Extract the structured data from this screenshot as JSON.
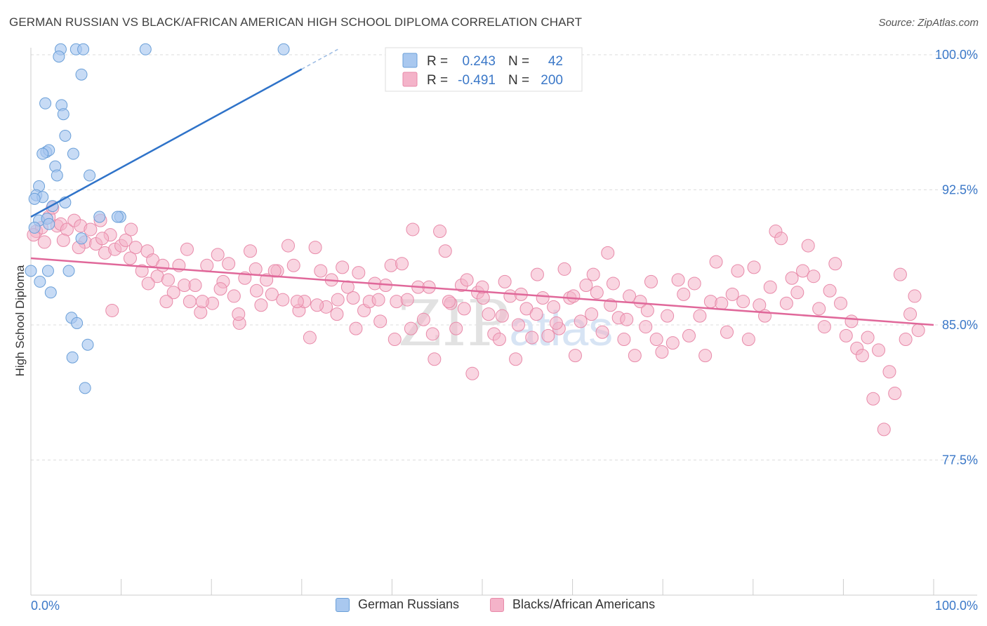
{
  "header": {
    "title": "GERMAN RUSSIAN VS BLACK/AFRICAN AMERICAN HIGH SCHOOL DIPLOMA CORRELATION CHART",
    "source": "Source: ZipAtlas.com"
  },
  "watermark": "ZIPatlas",
  "colors": {
    "blue_fill": "#a9c8ef",
    "blue_stroke": "#6a9fd8",
    "blue_line": "#2f73c9",
    "pink_fill": "#f4b3c9",
    "pink_stroke": "#e88aa9",
    "pink_line": "#e0689a",
    "axis_value": "#3b78c8",
    "grid": "#dddddd"
  },
  "legend_box": {
    "rows": [
      {
        "r_label": "R =",
        "r_value": "0.243",
        "n_label": "N =",
        "n_value": "42"
      },
      {
        "r_label": "R =",
        "r_value": "-0.491",
        "n_label": "N =",
        "n_value": "200"
      }
    ]
  },
  "chart_data": {
    "type": "scatter",
    "title": "GERMAN RUSSIAN VS BLACK/AFRICAN AMERICAN HIGH SCHOOL DIPLOMA CORRELATION CHART",
    "xlabel": "",
    "ylabel": "High School Diploma",
    "xlim": [
      0,
      100
    ],
    "ylim": [
      70,
      100
    ],
    "x_tick_labels": [
      "0.0%",
      "100.0%"
    ],
    "y_tick_labels": [
      "100.0%",
      "92.5%",
      "85.0%",
      "77.5%"
    ],
    "y_ticks": [
      100.0,
      92.5,
      85.0,
      77.5
    ],
    "grid": true,
    "legend": "bottom-center",
    "series": [
      {
        "name": "German Russians",
        "color": "#a9c8ef",
        "r": 0.243,
        "n": 42,
        "trend": {
          "x0": 0.0,
          "y0": 91.0,
          "x1": 30.0,
          "y1": 99.2,
          "dashed_to_x": 34.0,
          "dashed_to_y": 100.3
        },
        "points": [
          [
            3.3,
            100.3
          ],
          [
            5.0,
            100.3
          ],
          [
            5.8,
            100.3
          ],
          [
            12.7,
            100.3
          ],
          [
            28.0,
            100.3
          ],
          [
            3.1,
            99.9
          ],
          [
            5.6,
            98.9
          ],
          [
            1.6,
            97.3
          ],
          [
            3.4,
            97.2
          ],
          [
            3.6,
            96.7
          ],
          [
            3.8,
            95.5
          ],
          [
            1.7,
            94.6
          ],
          [
            2.0,
            94.7
          ],
          [
            1.3,
            94.5
          ],
          [
            4.7,
            94.5
          ],
          [
            2.7,
            93.8
          ],
          [
            2.9,
            93.3
          ],
          [
            6.5,
            93.3
          ],
          [
            0.9,
            92.7
          ],
          [
            0.6,
            92.2
          ],
          [
            1.3,
            92.1
          ],
          [
            0.4,
            92.0
          ],
          [
            3.8,
            91.8
          ],
          [
            2.4,
            91.6
          ],
          [
            7.6,
            91.0
          ],
          [
            9.9,
            91.0
          ],
          [
            0.9,
            90.8
          ],
          [
            1.8,
            90.9
          ],
          [
            9.6,
            91.0
          ],
          [
            5.6,
            89.8
          ],
          [
            0.0,
            88.0
          ],
          [
            4.2,
            88.0
          ],
          [
            1.9,
            88.0
          ],
          [
            1.0,
            87.4
          ],
          [
            2.2,
            86.8
          ],
          [
            4.5,
            85.4
          ],
          [
            5.1,
            85.1
          ],
          [
            6.3,
            83.9
          ],
          [
            4.6,
            83.2
          ],
          [
            6.0,
            81.5
          ],
          [
            0.4,
            90.4
          ],
          [
            2.0,
            90.6
          ]
        ]
      },
      {
        "name": "Blacks/African Americans",
        "color": "#f4b3c9",
        "r": -0.491,
        "n": 200,
        "trend": {
          "x0": 0.0,
          "y0": 88.7,
          "x1": 100.0,
          "y1": 85.0
        },
        "points": [
          [
            0.6,
            90.2
          ],
          [
            1.2,
            90.4
          ],
          [
            2.0,
            91.0
          ],
          [
            2.4,
            91.5
          ],
          [
            2.9,
            90.5
          ],
          [
            3.3,
            90.6
          ],
          [
            4.0,
            90.3
          ],
          [
            4.8,
            90.8
          ],
          [
            5.5,
            90.5
          ],
          [
            6.0,
            89.6
          ],
          [
            6.6,
            90.3
          ],
          [
            7.2,
            89.5
          ],
          [
            7.7,
            90.8
          ],
          [
            8.2,
            89.0
          ],
          [
            8.8,
            90.0
          ],
          [
            9.3,
            89.2
          ],
          [
            10.0,
            89.4
          ],
          [
            10.5,
            89.7
          ],
          [
            11.1,
            90.3
          ],
          [
            11.6,
            89.3
          ],
          [
            12.3,
            88.0
          ],
          [
            12.9,
            89.1
          ],
          [
            13.5,
            88.6
          ],
          [
            14.0,
            87.7
          ],
          [
            14.6,
            88.3
          ],
          [
            15.2,
            87.5
          ],
          [
            15.8,
            86.8
          ],
          [
            16.4,
            88.3
          ],
          [
            17.0,
            87.2
          ],
          [
            17.6,
            86.3
          ],
          [
            18.2,
            87.2
          ],
          [
            18.8,
            85.7
          ],
          [
            19.5,
            88.3
          ],
          [
            20.1,
            86.2
          ],
          [
            20.7,
            88.9
          ],
          [
            21.3,
            87.4
          ],
          [
            21.9,
            88.4
          ],
          [
            22.5,
            86.6
          ],
          [
            23.1,
            85.1
          ],
          [
            23.7,
            87.6
          ],
          [
            24.3,
            89.1
          ],
          [
            24.9,
            88.1
          ],
          [
            25.5,
            86.1
          ],
          [
            26.1,
            87.5
          ],
          [
            26.7,
            86.7
          ],
          [
            27.3,
            88.0
          ],
          [
            27.9,
            86.4
          ],
          [
            28.5,
            89.4
          ],
          [
            29.1,
            88.3
          ],
          [
            29.7,
            85.8
          ],
          [
            30.3,
            86.3
          ],
          [
            30.9,
            84.3
          ],
          [
            31.5,
            89.3
          ],
          [
            32.1,
            88.0
          ],
          [
            32.7,
            86.0
          ],
          [
            33.3,
            87.5
          ],
          [
            33.9,
            85.6
          ],
          [
            34.5,
            88.2
          ],
          [
            35.1,
            87.1
          ],
          [
            35.7,
            86.5
          ],
          [
            36.3,
            87.9
          ],
          [
            36.9,
            85.8
          ],
          [
            37.5,
            86.3
          ],
          [
            38.1,
            87.3
          ],
          [
            38.7,
            85.2
          ],
          [
            39.3,
            87.2
          ],
          [
            39.9,
            88.3
          ],
          [
            40.5,
            86.3
          ],
          [
            41.1,
            88.4
          ],
          [
            41.7,
            86.4
          ],
          [
            42.3,
            90.3
          ],
          [
            42.9,
            87.1
          ],
          [
            43.5,
            85.3
          ],
          [
            44.1,
            87.1
          ],
          [
            44.7,
            83.1
          ],
          [
            45.3,
            90.2
          ],
          [
            45.9,
            89.1
          ],
          [
            46.5,
            86.2
          ],
          [
            47.1,
            84.8
          ],
          [
            47.7,
            87.2
          ],
          [
            48.3,
            87.5
          ],
          [
            48.9,
            82.3
          ],
          [
            49.5,
            86.8
          ],
          [
            50.1,
            86.5
          ],
          [
            50.7,
            85.6
          ],
          [
            51.3,
            84.5
          ],
          [
            51.9,
            84.2
          ],
          [
            52.5,
            87.4
          ],
          [
            53.1,
            86.6
          ],
          [
            53.7,
            83.1
          ],
          [
            54.3,
            86.7
          ],
          [
            54.9,
            85.9
          ],
          [
            55.5,
            84.3
          ],
          [
            56.1,
            87.8
          ],
          [
            56.7,
            86.5
          ],
          [
            57.3,
            84.4
          ],
          [
            57.9,
            86.0
          ],
          [
            58.5,
            84.8
          ],
          [
            59.1,
            88.1
          ],
          [
            59.7,
            86.5
          ],
          [
            60.3,
            83.3
          ],
          [
            60.9,
            85.2
          ],
          [
            61.5,
            87.2
          ],
          [
            62.1,
            85.6
          ],
          [
            62.7,
            86.8
          ],
          [
            63.3,
            84.6
          ],
          [
            63.9,
            89.0
          ],
          [
            64.5,
            87.3
          ],
          [
            65.1,
            85.4
          ],
          [
            65.7,
            84.2
          ],
          [
            66.3,
            86.6
          ],
          [
            66.9,
            83.3
          ],
          [
            67.5,
            86.3
          ],
          [
            68.1,
            84.9
          ],
          [
            68.7,
            87.4
          ],
          [
            69.3,
            84.2
          ],
          [
            69.9,
            83.5
          ],
          [
            70.5,
            85.5
          ],
          [
            71.1,
            84.0
          ],
          [
            71.7,
            87.5
          ],
          [
            72.3,
            86.7
          ],
          [
            72.9,
            84.4
          ],
          [
            73.5,
            87.3
          ],
          [
            74.1,
            85.5
          ],
          [
            74.7,
            83.3
          ],
          [
            75.3,
            86.3
          ],
          [
            75.9,
            88.5
          ],
          [
            76.5,
            86.2
          ],
          [
            77.1,
            84.6
          ],
          [
            77.7,
            86.7
          ],
          [
            78.3,
            88.0
          ],
          [
            78.9,
            86.3
          ],
          [
            79.5,
            84.2
          ],
          [
            80.1,
            88.2
          ],
          [
            80.7,
            86.1
          ],
          [
            81.3,
            85.5
          ],
          [
            81.9,
            87.1
          ],
          [
            82.5,
            90.2
          ],
          [
            83.1,
            89.8
          ],
          [
            83.7,
            86.2
          ],
          [
            84.3,
            87.6
          ],
          [
            84.9,
            86.8
          ],
          [
            85.5,
            88.0
          ],
          [
            86.1,
            89.4
          ],
          [
            86.7,
            87.7
          ],
          [
            87.3,
            85.9
          ],
          [
            87.9,
            84.9
          ],
          [
            88.5,
            86.9
          ],
          [
            89.1,
            88.4
          ],
          [
            89.7,
            86.2
          ],
          [
            90.3,
            84.4
          ],
          [
            90.9,
            85.2
          ],
          [
            91.5,
            83.7
          ],
          [
            92.1,
            83.3
          ],
          [
            92.7,
            84.3
          ],
          [
            93.3,
            80.9
          ],
          [
            93.9,
            83.6
          ],
          [
            94.5,
            79.2
          ],
          [
            95.1,
            82.4
          ],
          [
            95.7,
            81.2
          ],
          [
            96.3,
            87.8
          ],
          [
            96.9,
            84.2
          ],
          [
            97.4,
            85.6
          ],
          [
            97.9,
            86.6
          ],
          [
            98.3,
            84.7
          ],
          [
            0.3,
            90.0
          ],
          [
            1.5,
            89.6
          ],
          [
            3.6,
            89.7
          ],
          [
            5.3,
            89.3
          ],
          [
            7.9,
            89.8
          ],
          [
            9.0,
            85.8
          ],
          [
            11.0,
            88.7
          ],
          [
            13.0,
            87.3
          ],
          [
            15.0,
            86.3
          ],
          [
            17.3,
            89.2
          ],
          [
            19.0,
            86.3
          ],
          [
            21.0,
            87.0
          ],
          [
            23.0,
            85.6
          ],
          [
            25.0,
            86.9
          ],
          [
            27.0,
            88.0
          ],
          [
            29.5,
            86.3
          ],
          [
            31.7,
            86.1
          ],
          [
            34.0,
            86.4
          ],
          [
            36.0,
            84.8
          ],
          [
            38.5,
            86.4
          ],
          [
            40.3,
            84.2
          ],
          [
            42.1,
            84.8
          ],
          [
            44.5,
            84.5
          ],
          [
            46.3,
            86.3
          ],
          [
            48.0,
            85.9
          ],
          [
            50.0,
            87.1
          ],
          [
            52.2,
            85.5
          ],
          [
            54.0,
            85.0
          ],
          [
            56.0,
            85.6
          ],
          [
            58.2,
            85.1
          ],
          [
            60.1,
            86.6
          ],
          [
            62.3,
            87.8
          ],
          [
            64.2,
            86.1
          ],
          [
            66.0,
            85.3
          ],
          [
            68.3,
            85.8
          ]
        ]
      }
    ]
  },
  "bottom_legend": {
    "items": [
      {
        "label": "German Russians"
      },
      {
        "label": "Blacks/African Americans"
      }
    ]
  }
}
